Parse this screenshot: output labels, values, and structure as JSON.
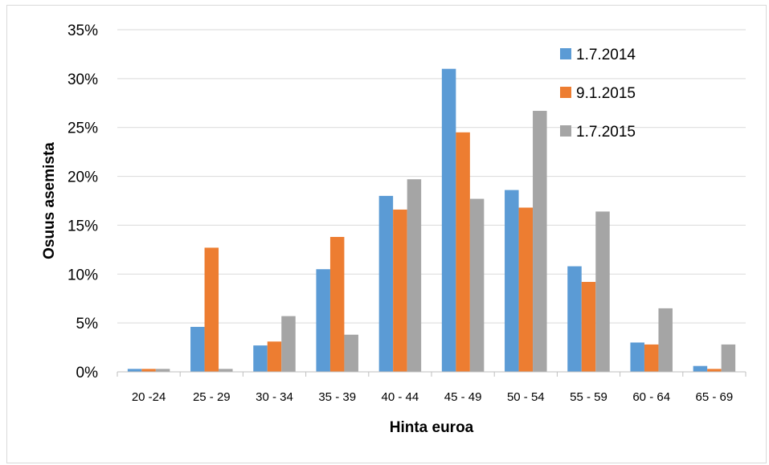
{
  "chart_data": {
    "type": "bar",
    "title": "",
    "xlabel": "Hinta euroa",
    "ylabel": "Osuus asemista",
    "categories": [
      "20 -24",
      "25 - 29",
      "30 - 34",
      "35 - 39",
      "40 - 44",
      "45 - 49",
      "50 - 54",
      "55 - 59",
      "60 - 64",
      "65 - 69"
    ],
    "series": [
      {
        "name": "1.7.2014",
        "color": "#5b9bd5",
        "values": [
          0.3,
          4.6,
          2.7,
          10.5,
          18.0,
          31.0,
          18.6,
          10.8,
          3.0,
          0.6
        ]
      },
      {
        "name": "9.1.2015",
        "color": "#ed7d31",
        "values": [
          0.3,
          12.7,
          3.1,
          13.8,
          16.6,
          24.5,
          16.8,
          9.2,
          2.8,
          0.3
        ]
      },
      {
        "name": "1.7.2015",
        "color": "#a5a5a5",
        "values": [
          0.3,
          0.3,
          5.7,
          3.8,
          19.7,
          17.7,
          26.7,
          16.4,
          6.5,
          2.8
        ]
      }
    ],
    "yticks": [
      "0%",
      "5%",
      "10%",
      "15%",
      "20%",
      "25%",
      "30%",
      "35%"
    ],
    "ylim": [
      0,
      35
    ],
    "grid": true,
    "legend_position": "top-right"
  }
}
